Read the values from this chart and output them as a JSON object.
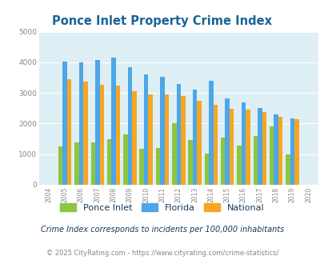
{
  "title": "Ponce Inlet Property Crime Index",
  "subtitle": "Crime Index corresponds to incidents per 100,000 inhabitants",
  "footer": "© 2025 CityRating.com - https://www.cityrating.com/crime-statistics/",
  "years": [
    2004,
    2005,
    2006,
    2007,
    2008,
    2009,
    2010,
    2011,
    2012,
    2013,
    2014,
    2015,
    2016,
    2017,
    2018,
    2019,
    2020
  ],
  "ponce_inlet": [
    0,
    1250,
    1390,
    1390,
    1500,
    1650,
    1175,
    1200,
    2000,
    1450,
    1010,
    1530,
    1275,
    1590,
    1900,
    1000,
    0
  ],
  "florida": [
    0,
    4020,
    4000,
    4080,
    4150,
    3850,
    3600,
    3520,
    3300,
    3110,
    3400,
    2820,
    2700,
    2500,
    2290,
    2180,
    0
  ],
  "national": [
    0,
    3460,
    3360,
    3270,
    3240,
    3060,
    2960,
    2950,
    2890,
    2730,
    2600,
    2490,
    2460,
    2380,
    2230,
    2150,
    0
  ],
  "bar_width": 0.27,
  "colors": {
    "ponce_inlet": "#8dc63f",
    "florida": "#4da6e8",
    "national": "#f5a623"
  },
  "ylim": [
    0,
    5000
  ],
  "yticks": [
    0,
    1000,
    2000,
    3000,
    4000,
    5000
  ],
  "bg_color": "#deeef5",
  "title_color": "#1a6496",
  "subtitle_color": "#1a3a5c",
  "footer_color": "#888888",
  "footer_url_color": "#4da6e8",
  "legend_labels": [
    "Ponce Inlet",
    "Florida",
    "National"
  ],
  "legend_label_color": "#1a3a5c"
}
